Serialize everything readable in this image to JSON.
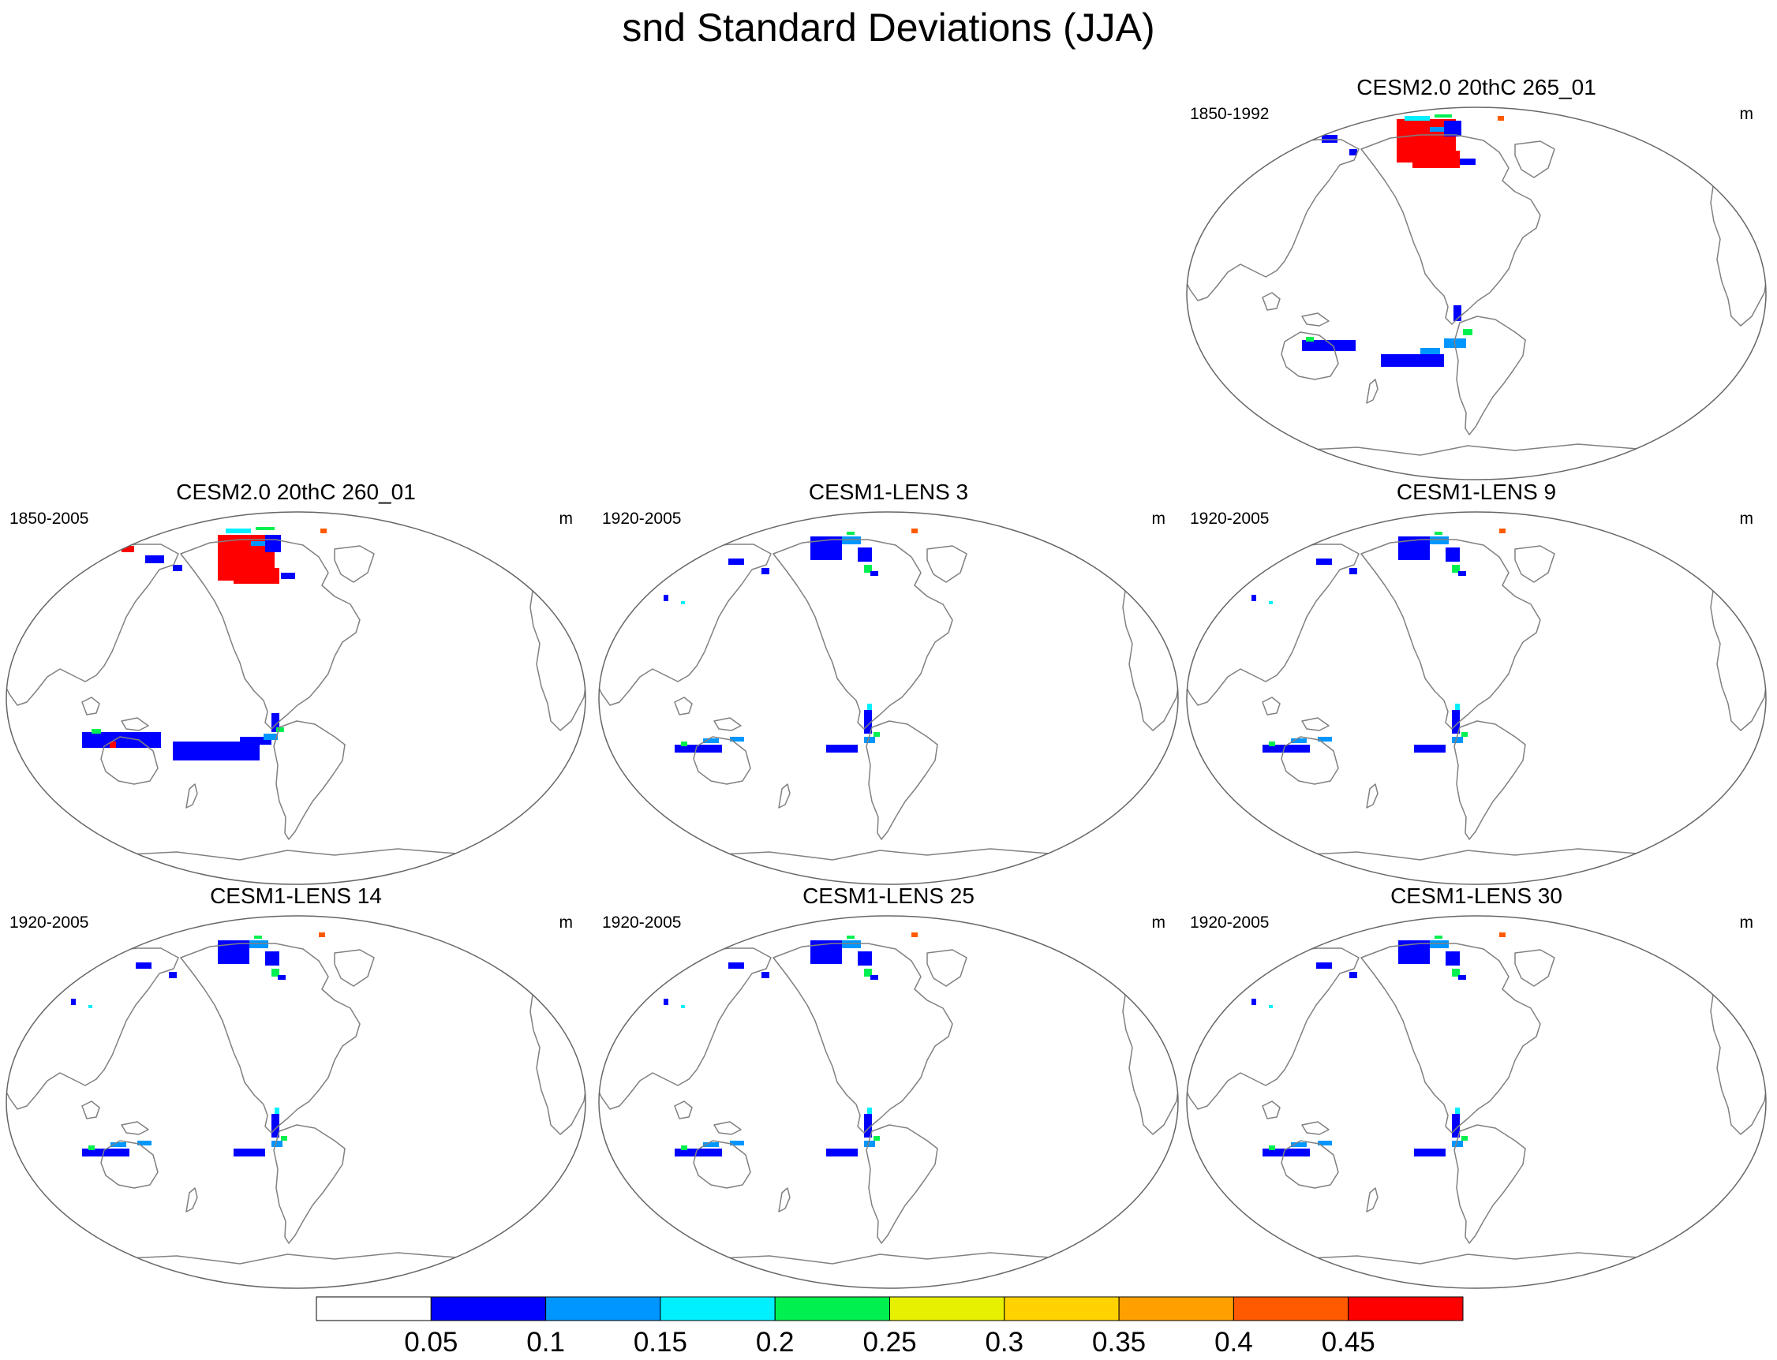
{
  "title": "snd Standard Deviations (JJA)",
  "panels": [
    {
      "id": "p265",
      "title": "CESM2.0 20thC 265_01",
      "period": "1850-1992",
      "units": "m",
      "intensity": "high-arctic"
    },
    {
      "id": "p260",
      "title": "CESM2.0 20thC 260_01",
      "period": "1850-2005",
      "units": "m",
      "intensity": "high"
    },
    {
      "id": "l3",
      "title": "CESM1-LENS 3",
      "period": "1920-2005",
      "units": "m",
      "intensity": "low"
    },
    {
      "id": "l9",
      "title": "CESM1-LENS 9",
      "period": "1920-2005",
      "units": "m",
      "intensity": "low"
    },
    {
      "id": "l14",
      "title": "CESM1-LENS 14",
      "period": "1920-2005",
      "units": "m",
      "intensity": "low"
    },
    {
      "id": "l25",
      "title": "CESM1-LENS 25",
      "period": "1920-2005",
      "units": "m",
      "intensity": "low"
    },
    {
      "id": "l30",
      "title": "CESM1-LENS 30",
      "period": "1920-2005",
      "units": "m",
      "intensity": "low"
    }
  ],
  "colorbar": {
    "labels": [
      "0.05",
      "0.1",
      "0.15",
      "0.2",
      "0.25",
      "0.3",
      "0.35",
      "0.4",
      "0.45"
    ],
    "colors": [
      "#ffffff",
      "#0000ff",
      "#0096ff",
      "#00f0ff",
      "#00f050",
      "#e6f000",
      "#ffd200",
      "#ffa000",
      "#ff5a00",
      "#ff0000"
    ]
  }
}
